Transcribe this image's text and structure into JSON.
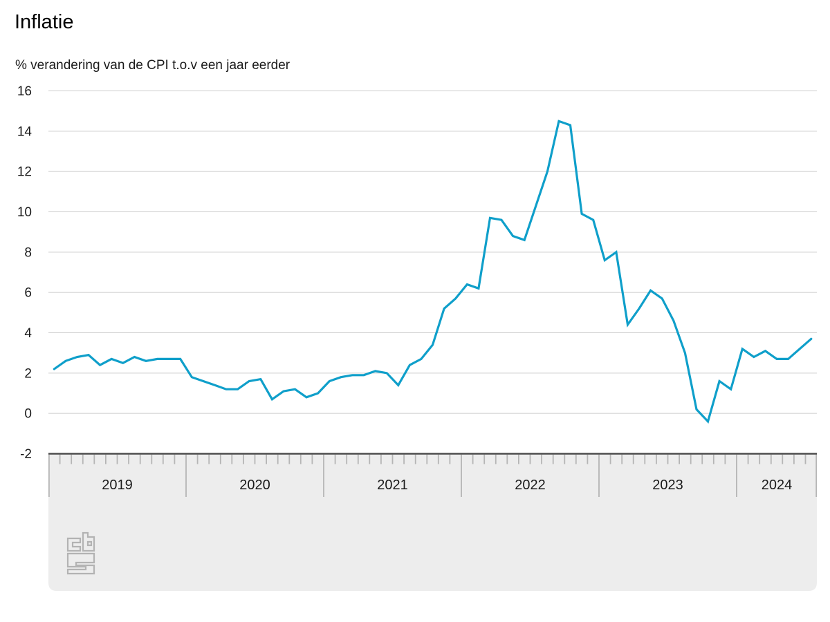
{
  "header": {
    "title": "Inflatie",
    "subtitle": "% verandering van de CPI t.o.v een jaar eerder"
  },
  "chart_data": {
    "type": "line",
    "title": "Inflatie",
    "subtitle": "% verandering van de CPI t.o.v een jaar eerder",
    "x_unit": "month",
    "x_start": "2019-01",
    "x_end": "2024-07",
    "year_labels": [
      "2019",
      "2020",
      "2021",
      "2022",
      "2023",
      "2024"
    ],
    "y_ticks": [
      16,
      14,
      12,
      10,
      8,
      6,
      4,
      2,
      0,
      -2
    ],
    "ylim": [
      -2,
      16
    ],
    "grid": true,
    "legend": false,
    "series": [
      {
        "name": "Inflatie (CPI, % verandering t.o.v een jaar eerder)",
        "values": [
          2.2,
          2.6,
          2.8,
          2.9,
          2.4,
          2.7,
          2.5,
          2.8,
          2.6,
          2.7,
          2.7,
          2.7,
          1.8,
          1.6,
          1.4,
          1.2,
          1.2,
          1.6,
          1.7,
          0.7,
          1.1,
          1.2,
          0.8,
          1.0,
          1.6,
          1.8,
          1.9,
          1.9,
          2.1,
          2.0,
          1.4,
          2.4,
          2.7,
          3.4,
          5.2,
          5.7,
          6.4,
          6.2,
          9.7,
          9.6,
          8.8,
          8.6,
          10.3,
          12.0,
          14.5,
          14.3,
          9.9,
          9.6,
          7.6,
          8.0,
          4.4,
          5.2,
          6.1,
          5.7,
          4.6,
          3.0,
          0.2,
          -0.4,
          1.6,
          1.2,
          3.2,
          2.8,
          3.1,
          2.7,
          2.7,
          3.2,
          3.7
        ]
      }
    ],
    "colors": {
      "line": "#0f9fca",
      "grid": "#cccccc",
      "axis": "#4d4d4d",
      "band": "#ededed",
      "tick": "#b5b5b5",
      "label": "#1a1a1a",
      "logo": "#b3b3b3"
    }
  },
  "footer": {
    "logo_name": "cbs-logo"
  }
}
